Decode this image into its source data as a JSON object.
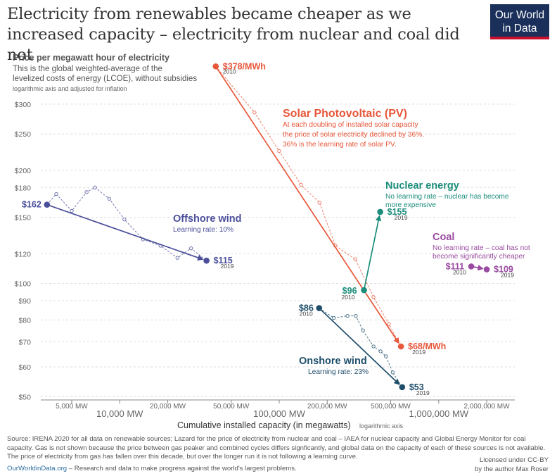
{
  "title": "Electricity from renewables became cheaper as we increased capacity – electricity from nuclear and coal did not",
  "logo": {
    "line1": "Our World",
    "line2": "in Data"
  },
  "chart_data": {
    "type": "scatter",
    "subtitle_bold": "Price per megawatt hour of electricity",
    "subtitle_lines": [
      "This is the global weighted-average of the",
      "levelized costs of energy (LCOE), without subsidies"
    ],
    "subtitle_note": "logarithmic axis and adjusted for inflation",
    "xlabel": "Cumulative installed capacity (in megawatts)",
    "xlabel_note": "logarithmic axis",
    "x_scale": "log",
    "y_scale": "log",
    "xlim": [
      3200,
      3000000
    ],
    "ylim": [
      49,
      385
    ],
    "x_ticks": [
      {
        "value": 5000,
        "label": "5,000 MW",
        "major": false
      },
      {
        "value": 10000,
        "label": "10,000 MW",
        "major": true
      },
      {
        "value": 20000,
        "label": "20,000 MW",
        "major": false
      },
      {
        "value": 50000,
        "label": "50,000 MW",
        "major": false
      },
      {
        "value": 100000,
        "label": "100,000 MW",
        "major": true
      },
      {
        "value": 200000,
        "label": "200,000 MW",
        "major": false
      },
      {
        "value": 500000,
        "label": "500,000 MW",
        "major": false
      },
      {
        "value": 1000000,
        "label": "1,000,000 MW",
        "major": true
      },
      {
        "value": 2000000,
        "label": "2,000,000 MW",
        "major": false
      }
    ],
    "y_ticks": [
      {
        "value": 300,
        "label": "$300"
      },
      {
        "value": 250,
        "label": "$250"
      },
      {
        "value": 200,
        "label": "$200"
      },
      {
        "value": 180,
        "label": "$180"
      },
      {
        "value": 150,
        "label": "$150"
      },
      {
        "value": 120,
        "label": "$120"
      },
      {
        "value": 100,
        "label": "$100"
      },
      {
        "value": 90,
        "label": "$90"
      },
      {
        "value": 80,
        "label": "$80"
      },
      {
        "value": 70,
        "label": "$70"
      },
      {
        "value": 60,
        "label": "$60"
      },
      {
        "value": 50,
        "label": "$50"
      }
    ],
    "series": [
      {
        "name": "Solar Photovoltaic (PV)",
        "color": "#e8573a",
        "description": [
          "At each doubling of installed solar capacity",
          "the price of solar electricity declined by 36%.",
          "36% is the learning rate of solar PV."
        ],
        "yearly": [
          {
            "x": 40000,
            "y": 378
          },
          {
            "x": 70000,
            "y": 285
          },
          {
            "x": 100000,
            "y": 225
          },
          {
            "x": 137000,
            "y": 183
          },
          {
            "x": 179000,
            "y": 164
          },
          {
            "x": 225000,
            "y": 126
          },
          {
            "x": 300000,
            "y": 116
          },
          {
            "x": 390000,
            "y": 92
          },
          {
            "x": 487000,
            "y": 78
          },
          {
            "x": 580000,
            "y": 68
          }
        ],
        "start": {
          "x": 40000,
          "y": 378,
          "label": "$378/MWh",
          "year": "2010"
        },
        "end": {
          "x": 580000,
          "y": 68,
          "label": "$68/MWh",
          "year": "2019"
        }
      },
      {
        "name": "Onshore wind",
        "color": "#1f4e6b",
        "description": [
          "Learning rate: 23%"
        ],
        "yearly": [
          {
            "x": 178000,
            "y": 86
          },
          {
            "x": 220000,
            "y": 81
          },
          {
            "x": 268000,
            "y": 82
          },
          {
            "x": 302000,
            "y": 82
          },
          {
            "x": 335000,
            "y": 75
          },
          {
            "x": 390000,
            "y": 68
          },
          {
            "x": 432000,
            "y": 66
          },
          {
            "x": 467000,
            "y": 64
          },
          {
            "x": 515000,
            "y": 58
          },
          {
            "x": 590000,
            "y": 53
          }
        ],
        "start": {
          "x": 178000,
          "y": 86,
          "label": "$86",
          "year": "2010"
        },
        "end": {
          "x": 590000,
          "y": 53,
          "label": "$53",
          "year": "2019"
        }
      },
      {
        "name": "Offshore wind",
        "color": "#4b4f9b",
        "description": [
          "Learning rate: 10%"
        ],
        "yearly": [
          {
            "x": 3500,
            "y": 162
          },
          {
            "x": 4000,
            "y": 173
          },
          {
            "x": 5000,
            "y": 156
          },
          {
            "x": 6200,
            "y": 175
          },
          {
            "x": 7000,
            "y": 180
          },
          {
            "x": 8600,
            "y": 168
          },
          {
            "x": 10700,
            "y": 148
          },
          {
            "x": 14000,
            "y": 131
          },
          {
            "x": 18000,
            "y": 126
          },
          {
            "x": 23000,
            "y": 117
          },
          {
            "x": 28000,
            "y": 124
          },
          {
            "x": 35000,
            "y": 115
          }
        ],
        "start": {
          "x": 3500,
          "y": 162,
          "label": "$162",
          "year": ""
        },
        "end": {
          "x": 35000,
          "y": 115,
          "label": "$115",
          "year": "2019"
        }
      },
      {
        "name": "Nuclear energy",
        "color": "#1b8d7a",
        "description": [
          "No learning rate – nuclear has become",
          "more expensive"
        ],
        "yearly": [],
        "start": {
          "x": 340000,
          "y": 96,
          "label": "$96",
          "year": "2010"
        },
        "end": {
          "x": 430000,
          "y": 155,
          "label": "$155",
          "year": "2019"
        }
      },
      {
        "name": "Coal",
        "color": "#9a4ba0",
        "description": [
          "No learning rate – coal has not",
          "become significantly cheaper"
        ],
        "yearly": [],
        "start": {
          "x": 1600000,
          "y": 111,
          "label": "$111",
          "year": "2010"
        },
        "end": {
          "x": 2000000,
          "y": 109,
          "label": "$109",
          "year": "2019"
        }
      }
    ]
  },
  "footer": {
    "source": "Source: IRENA 2020 for all data on renewable sources; Lazard for the price of electricity from nuclear and coal – IAEA for nuclear capacity and Global Energy Monitor for coal capacity. Gas is not shown because the price between gas peaker and combined cycles differs signficantly, and global data on the capacity of each of these sources is not available. The price of electricity from gas has fallen over this decade, but over the longer run it is not following a learning curve.",
    "link": "OurWorldinData.org",
    "tagline": " – Research and data to make progress against the world's largest problems.",
    "license_line1": "Licensed under CC-BY",
    "license_line2": "by the author Max Roser"
  }
}
